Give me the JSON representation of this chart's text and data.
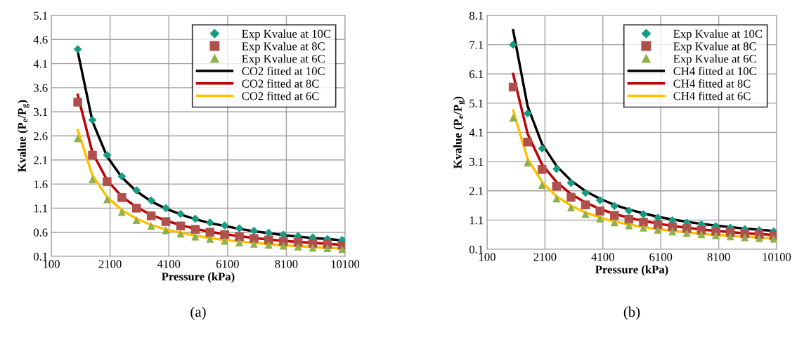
{
  "chart_data": [
    {
      "type": "scatter",
      "xlabel": "Pressure (kPa)",
      "ylabel": "Kvalue (P$_{e}$/P$_{g}$)",
      "annotations": [
        "(a)"
      ],
      "xlim": [
        100,
        10100
      ],
      "xticks": [
        100,
        2100,
        4100,
        6100,
        8100,
        10100
      ],
      "ylim": [
        0.1,
        5.1
      ],
      "yticks": [
        0.1,
        0.6,
        1.1,
        1.6,
        2.1,
        2.6,
        3.1,
        3.6,
        4.1,
        4.6,
        5.1
      ],
      "grid": true,
      "legend": "top right",
      "x": [
        1000,
        1500,
        2000,
        2500,
        3000,
        3500,
        4000,
        4500,
        5000,
        5500,
        6000,
        6500,
        7000,
        7500,
        8000,
        8500,
        9000,
        9500,
        10000
      ],
      "series": [
        {
          "name": "Exp Kvalue at 10C",
          "color": "#169c83",
          "marker": "diamond",
          "values": [
            4.4,
            2.93,
            2.2,
            1.76,
            1.47,
            1.26,
            1.1,
            0.98,
            0.88,
            0.8,
            0.74,
            0.68,
            0.63,
            0.59,
            0.55,
            0.52,
            0.49,
            0.46,
            0.44
          ]
        },
        {
          "name": "Exp Kvalue at 8C",
          "color": "#b0504c",
          "marker": "square",
          "values": [
            3.3,
            2.2,
            1.65,
            1.32,
            1.1,
            0.94,
            0.82,
            0.73,
            0.66,
            0.6,
            0.55,
            0.51,
            0.47,
            0.44,
            0.41,
            0.39,
            0.37,
            0.35,
            0.33
          ]
        },
        {
          "name": "Exp Kvalue at 6C",
          "color": "#8fb04a",
          "marker": "triangle",
          "values": [
            2.55,
            1.7,
            1.28,
            1.02,
            0.85,
            0.73,
            0.64,
            0.57,
            0.51,
            0.46,
            0.42,
            0.39,
            0.36,
            0.34,
            0.32,
            0.3,
            0.28,
            0.27,
            0.25
          ]
        },
        {
          "name": "CO2 fitted at 10C",
          "type": "line",
          "color": "#000000",
          "values": [
            4.35,
            2.9,
            2.17,
            1.74,
            1.45,
            1.24,
            1.09,
            0.97,
            0.87,
            0.79,
            0.73,
            0.67,
            0.62,
            0.58,
            0.54,
            0.51,
            0.48,
            0.46,
            0.43
          ]
        },
        {
          "name": "CO2 fitted at 8C",
          "type": "line",
          "color": "#c00000",
          "values": [
            3.45,
            2.25,
            1.68,
            1.34,
            1.12,
            0.96,
            0.84,
            0.75,
            0.67,
            0.61,
            0.56,
            0.52,
            0.48,
            0.45,
            0.42,
            0.4,
            0.38,
            0.36,
            0.34
          ]
        },
        {
          "name": "CO2 fitted at 6C",
          "type": "line",
          "color": "#ffc000",
          "values": [
            2.72,
            1.78,
            1.33,
            1.06,
            0.88,
            0.75,
            0.66,
            0.59,
            0.53,
            0.48,
            0.44,
            0.41,
            0.38,
            0.35,
            0.33,
            0.31,
            0.29,
            0.28,
            0.26
          ]
        }
      ]
    },
    {
      "type": "scatter",
      "xlabel": "Pressure (kPa)",
      "ylabel": "Kvalue (P$_{e}$/P$_{g}$)",
      "annotations": [
        "(b)"
      ],
      "xlim": [
        100,
        10100
      ],
      "xticks": [
        100,
        2100,
        4100,
        6100,
        8100,
        10100
      ],
      "ylim": [
        0.1,
        8.1
      ],
      "yticks": [
        0.1,
        1.1,
        2.1,
        3.1,
        4.1,
        5.1,
        6.1,
        7.1,
        8.1
      ],
      "grid": true,
      "legend": "top right",
      "x": [
        1000,
        1500,
        2000,
        2500,
        3000,
        3500,
        4000,
        4500,
        5000,
        5500,
        6000,
        6500,
        7000,
        7500,
        8000,
        8500,
        9000,
        9500,
        10000
      ],
      "series": [
        {
          "name": "Exp Kvalue at 10C",
          "color": "#169c83",
          "marker": "diamond",
          "values": [
            7.1,
            4.75,
            3.55,
            2.85,
            2.37,
            2.03,
            1.78,
            1.58,
            1.42,
            1.3,
            1.18,
            1.09,
            1.01,
            0.95,
            0.89,
            0.84,
            0.79,
            0.75,
            0.71
          ]
        },
        {
          "name": "Exp Kvalue at 8C",
          "color": "#b0504c",
          "marker": "square",
          "values": [
            5.65,
            3.77,
            2.83,
            2.26,
            1.88,
            1.62,
            1.41,
            1.26,
            1.13,
            1.03,
            0.94,
            0.87,
            0.81,
            0.75,
            0.71,
            0.67,
            0.63,
            0.6,
            0.57
          ]
        },
        {
          "name": "Exp Kvalue at 6C",
          "color": "#8fb04a",
          "marker": "triangle",
          "values": [
            4.6,
            3.07,
            2.3,
            1.84,
            1.53,
            1.31,
            1.15,
            1.02,
            0.92,
            0.84,
            0.77,
            0.71,
            0.66,
            0.61,
            0.58,
            0.54,
            0.51,
            0.48,
            0.46
          ]
        },
        {
          "name": "CH4 fitted at 10C",
          "type": "line",
          "color": "#000000",
          "values": [
            7.6,
            5.0,
            3.7,
            2.95,
            2.45,
            2.09,
            1.83,
            1.62,
            1.46,
            1.33,
            1.21,
            1.12,
            1.04,
            0.97,
            0.91,
            0.86,
            0.81,
            0.77,
            0.73
          ]
        },
        {
          "name": "CH4 fitted at 8C",
          "type": "line",
          "color": "#c00000",
          "values": [
            6.1,
            4.05,
            3.0,
            2.4,
            1.99,
            1.7,
            1.48,
            1.31,
            1.18,
            1.07,
            0.98,
            0.9,
            0.84,
            0.78,
            0.73,
            0.69,
            0.65,
            0.62,
            0.59
          ]
        },
        {
          "name": "CH4 fitted at 6C",
          "type": "line",
          "color": "#ffc000",
          "values": [
            4.85,
            3.2,
            2.4,
            1.91,
            1.59,
            1.36,
            1.19,
            1.05,
            0.95,
            0.86,
            0.79,
            0.73,
            0.68,
            0.63,
            0.59,
            0.56,
            0.53,
            0.5,
            0.47
          ]
        }
      ]
    }
  ]
}
